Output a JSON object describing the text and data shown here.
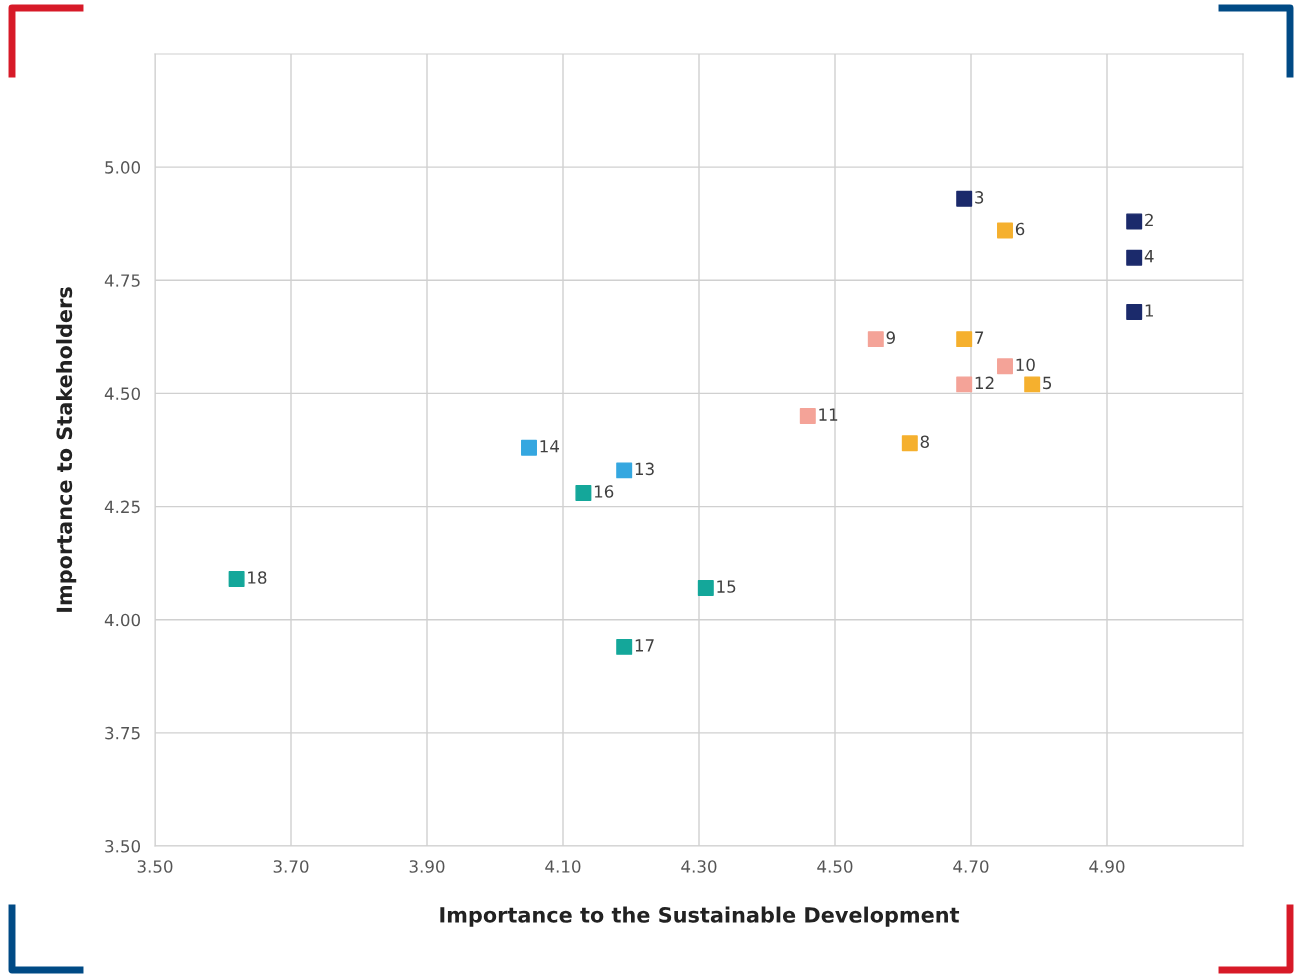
{
  "chart_data": {
    "type": "scatter",
    "xlabel": "Importance to the Sustainable Development",
    "ylabel": "Importance to Stakeholders",
    "marker": "square",
    "grid": true,
    "xlim": [
      3.5,
      5.1
    ],
    "ylim": [
      3.5,
      5.25
    ],
    "xticks": [
      {
        "value": 3.5,
        "label": "3.50"
      },
      {
        "value": 3.7,
        "label": "3.70"
      },
      {
        "value": 3.9,
        "label": "3.90"
      },
      {
        "value": 4.1,
        "label": "4.10"
      },
      {
        "value": 4.3,
        "label": "4.30"
      },
      {
        "value": 4.5,
        "label": "4.50"
      },
      {
        "value": 4.7,
        "label": "4.70"
      },
      {
        "value": 4.9,
        "label": "4.90"
      }
    ],
    "yticks": [
      {
        "value": 3.5,
        "label": "3.50"
      },
      {
        "value": 3.75,
        "label": "3.75"
      },
      {
        "value": 4.0,
        "label": "4.00"
      },
      {
        "value": 4.25,
        "label": "4.25"
      },
      {
        "value": 4.5,
        "label": "4.50"
      },
      {
        "value": 4.75,
        "label": "4.75"
      },
      {
        "value": 5.0,
        "label": "5.00"
      }
    ],
    "series": [
      {
        "color": "#1b2a6b",
        "x": [
          4.94,
          4.94,
          4.69,
          4.94
        ],
        "values": [
          4.68,
          4.88,
          4.93,
          4.8
        ]
      },
      {
        "color": "#f5b02e",
        "x": [
          4.79,
          4.75,
          4.69,
          4.61
        ],
        "values": [
          4.52,
          4.86,
          4.62,
          4.39
        ]
      },
      {
        "color": "#f4a398",
        "x": [
          4.56,
          4.75,
          4.46,
          4.69
        ],
        "values": [
          4.62,
          4.56,
          4.45,
          4.52
        ]
      },
      {
        "color": "#35a7e0",
        "x": [
          4.19,
          4.05
        ],
        "values": [
          4.33,
          4.38
        ]
      },
      {
        "color": "#14a79a",
        "x": [
          4.31,
          4.13,
          4.19,
          3.62
        ],
        "values": [
          4.07,
          4.28,
          3.94,
          4.09
        ]
      }
    ],
    "annotations": [
      {
        "text": "1",
        "x": 4.94,
        "y": 4.68
      },
      {
        "text": "2",
        "x": 4.94,
        "y": 4.88
      },
      {
        "text": "3",
        "x": 4.69,
        "y": 4.93
      },
      {
        "text": "4",
        "x": 4.94,
        "y": 4.8
      },
      {
        "text": "5",
        "x": 4.79,
        "y": 4.52
      },
      {
        "text": "6",
        "x": 4.75,
        "y": 4.86
      },
      {
        "text": "7",
        "x": 4.69,
        "y": 4.62
      },
      {
        "text": "8",
        "x": 4.61,
        "y": 4.39
      },
      {
        "text": "9",
        "x": 4.56,
        "y": 4.62
      },
      {
        "text": "10",
        "x": 4.75,
        "y": 4.56
      },
      {
        "text": "11",
        "x": 4.46,
        "y": 4.45
      },
      {
        "text": "12",
        "x": 4.69,
        "y": 4.52
      },
      {
        "text": "13",
        "x": 4.19,
        "y": 4.33
      },
      {
        "text": "14",
        "x": 4.05,
        "y": 4.38
      },
      {
        "text": "15",
        "x": 4.31,
        "y": 4.07
      },
      {
        "text": "16",
        "x": 4.13,
        "y": 4.28
      },
      {
        "text": "17",
        "x": 4.19,
        "y": 3.94
      },
      {
        "text": "18",
        "x": 3.62,
        "y": 4.09
      }
    ]
  }
}
